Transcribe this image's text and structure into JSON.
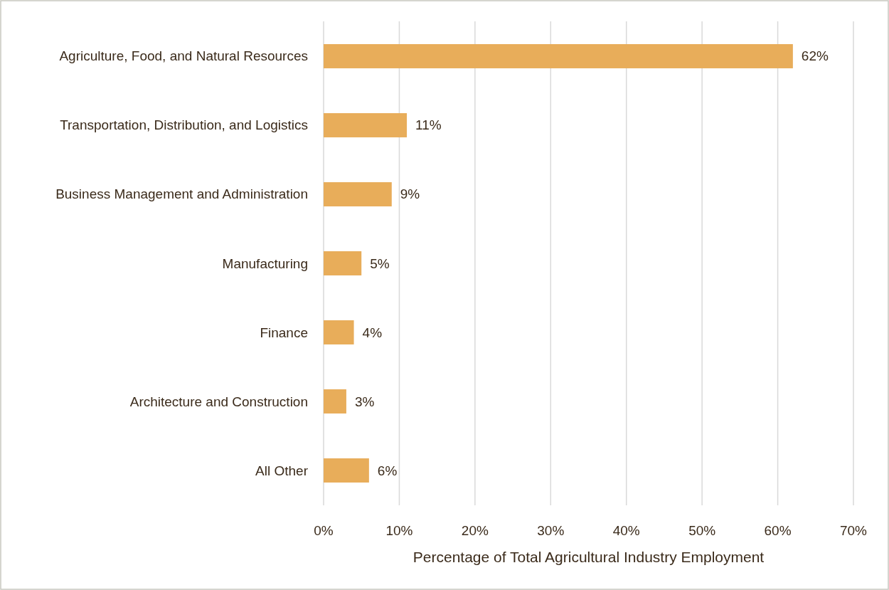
{
  "chart_data": {
    "type": "bar",
    "orientation": "horizontal",
    "xlabel": "Percentage of Total Agricultural Industry Employment",
    "categories": [
      "Agriculture, Food, and Natural Resources",
      "Transportation, Distribution, and Logistics",
      "Business Management and Administration",
      "Manufacturing",
      "Finance",
      "Architecture and Construction",
      "All Other"
    ],
    "values": [
      62,
      11,
      9,
      5,
      4,
      3,
      6
    ],
    "value_labels": [
      "62%",
      "11%",
      "9%",
      "5%",
      "4%",
      "3%",
      "6%"
    ],
    "color": "#e8ad5a",
    "xlim": [
      0,
      70
    ],
    "xticks": [
      {
        "value": 0,
        "label": "0%"
      },
      {
        "value": 10,
        "label": "10%"
      },
      {
        "value": 20,
        "label": "20%"
      },
      {
        "value": 30,
        "label": "30%"
      },
      {
        "value": 40,
        "label": "40%"
      },
      {
        "value": 50,
        "label": "50%"
      },
      {
        "value": 60,
        "label": "60%"
      },
      {
        "value": 70,
        "label": "70%"
      }
    ],
    "grid": "x"
  }
}
